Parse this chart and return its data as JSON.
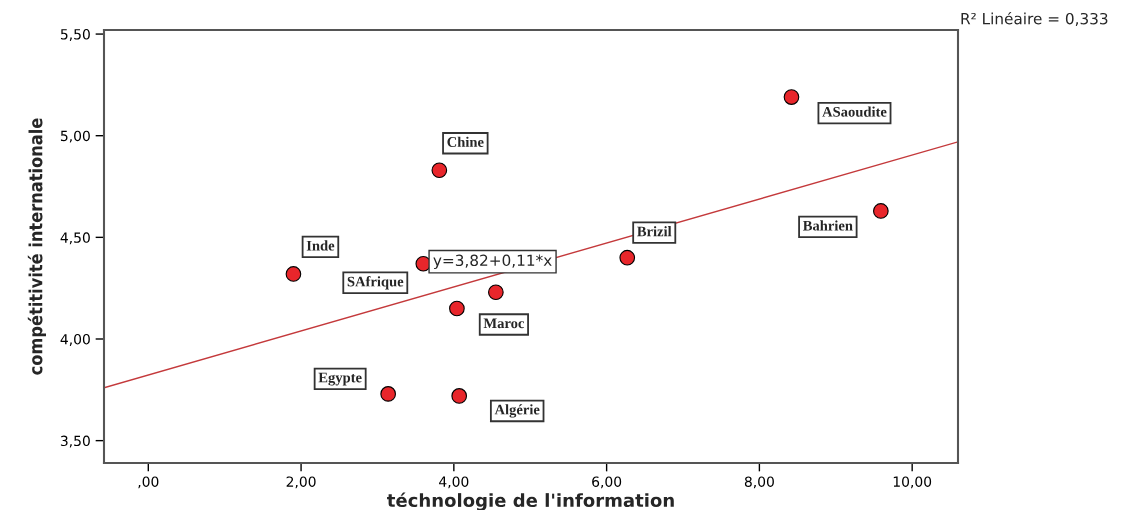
{
  "chart_data": {
    "type": "scatter",
    "xlabel": "téchnologie de l'information",
    "ylabel": "compétitivité internationale",
    "xlim": [
      -0.58,
      10.6
    ],
    "ylim": [
      3.39,
      5.52
    ],
    "xticks": [
      {
        "value": 0,
        "label": ",00"
      },
      {
        "value": 2,
        "label": "2,00"
      },
      {
        "value": 4,
        "label": "4,00"
      },
      {
        "value": 6,
        "label": "6,00"
      },
      {
        "value": 8,
        "label": "8,00"
      },
      {
        "value": 10,
        "label": "10,00"
      }
    ],
    "yticks": [
      {
        "value": 3.5,
        "label": "3,50"
      },
      {
        "value": 4,
        "label": "4,00"
      },
      {
        "value": 4.5,
        "label": "4,50"
      },
      {
        "value": 5,
        "label": "5,00"
      },
      {
        "value": 5.5,
        "label": "5,50"
      }
    ],
    "grid": false,
    "legend": false,
    "series": [
      {
        "marker": "circle",
        "color": "#e8262b",
        "x": [
          1.9,
          3.6,
          3.81,
          4.04,
          3.14,
          4.07,
          6.27,
          8.42,
          9.59,
          4.55
        ],
        "values": [
          4.32,
          4.37,
          4.83,
          4.15,
          3.73,
          3.72,
          4.4,
          5.19,
          4.63,
          4.23
        ]
      },
      {
        "type": "line",
        "color": "#c4393b",
        "line_style": "solid",
        "x": [
          -0.58,
          10.6
        ],
        "values": [
          3.76,
          4.97
        ]
      }
    ],
    "annotations": [
      {
        "text": "Inde",
        "x": 1.9,
        "y": 4.32
      },
      {
        "text": "SAfrique",
        "x": 3.6,
        "y": 4.37
      },
      {
        "text": "Chine",
        "x": 3.81,
        "y": 4.83
      },
      {
        "text": "Maroc",
        "x": 4.04,
        "y": 4.15
      },
      {
        "text": "Egypte",
        "x": 3.14,
        "y": 3.73
      },
      {
        "text": "Algérie",
        "x": 4.07,
        "y": 3.72
      },
      {
        "text": "Brizil",
        "x": 6.27,
        "y": 4.4
      },
      {
        "text": "ASaoudite",
        "x": 8.42,
        "y": 5.19
      },
      {
        "text": "Bahrien",
        "x": 9.59,
        "y": 4.63
      },
      "y=3,82+0,11*x",
      "R² Linéaire = 0,333"
    ]
  }
}
